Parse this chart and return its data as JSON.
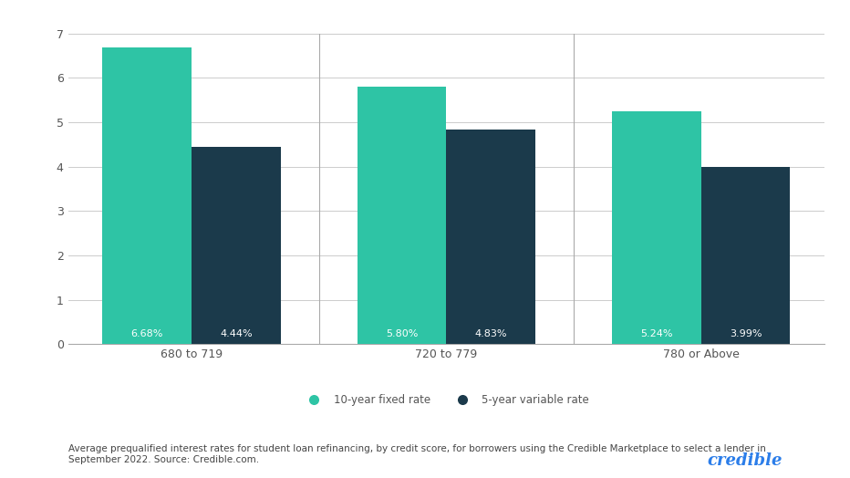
{
  "groups": [
    "680 to 719",
    "720 to 779",
    "780 or Above"
  ],
  "fixed_rates": [
    6.68,
    5.8,
    5.24
  ],
  "variable_rates": [
    4.44,
    4.83,
    3.99
  ],
  "fixed_labels": [
    "6.68%",
    "5.80%",
    "5.24%"
  ],
  "variable_labels": [
    "4.44%",
    "4.83%",
    "3.99%"
  ],
  "fixed_color": "#2ec4a5",
  "variable_color": "#1b3a4b",
  "ylim": [
    0,
    7
  ],
  "yticks": [
    0,
    1,
    2,
    3,
    4,
    5,
    6,
    7
  ],
  "bar_width": 0.35,
  "legend_fixed": "10-year fixed rate",
  "legend_variable": "5-year variable rate",
  "caption": "Average prequalified interest rates for student loan refinancing, by credit score, for borrowers using the Credible Marketplace to select a lender in\nSeptember 2022. Source: Credible.com.",
  "credible_text": "credible",
  "credible_color": "#2b7de9",
  "background_color": "#ffffff",
  "grid_color": "#cccccc",
  "label_color": "#ffffff",
  "axis_color": "#aaaaaa",
  "tick_color": "#555555"
}
